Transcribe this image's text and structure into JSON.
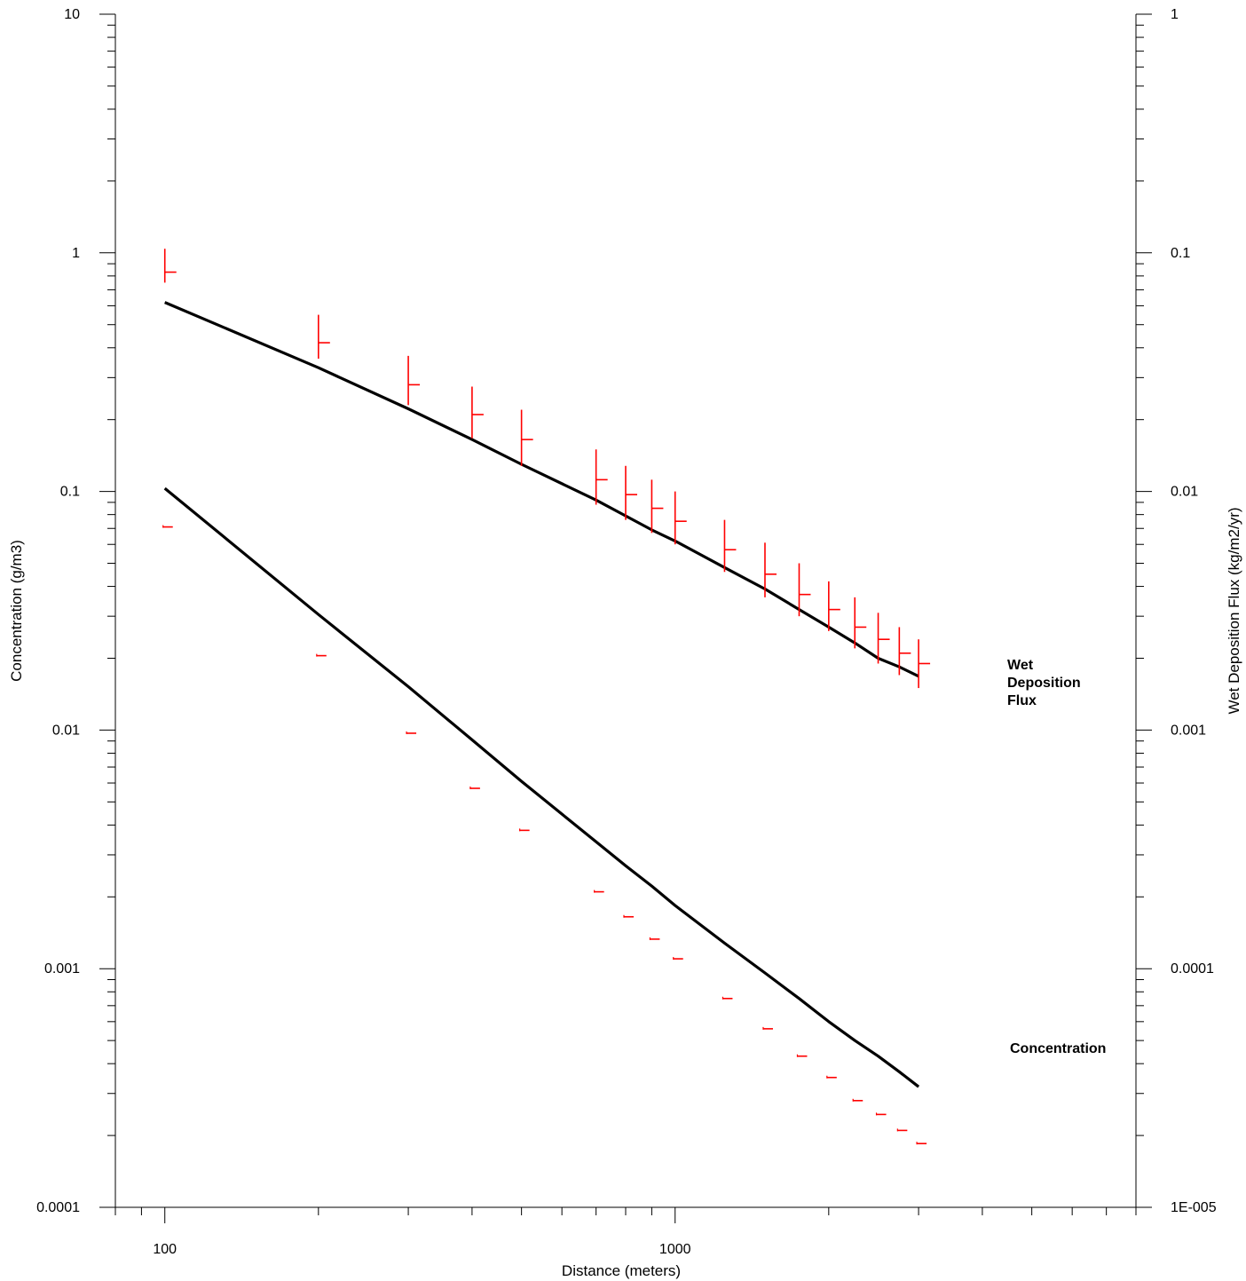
{
  "chart_data": {
    "type": "line",
    "title": "",
    "xlabel": "Distance (meters)",
    "ylabel": "Concentration (g/m3)",
    "y2label": "Wet Deposition Flux (kg/m2/yr)",
    "xscale": "log",
    "yscale": "log",
    "y2scale": "log",
    "xlim": [
      80,
      8000
    ],
    "ylim": [
      0.0001,
      10
    ],
    "y2lim": [
      1e-05,
      1
    ],
    "x_ticks": [
      100,
      1000
    ],
    "x_tick_labels": [
      "100",
      "1000"
    ],
    "y_ticks": [
      10,
      1,
      0.1,
      0.01,
      0.001,
      0.0001
    ],
    "y_tick_labels": [
      "10",
      "1",
      "0.1",
      "0.01",
      "0.001",
      "0.0001"
    ],
    "y2_ticks": [
      1,
      0.1,
      0.01,
      0.001,
      0.0001,
      1e-05
    ],
    "y2_tick_labels": [
      "1",
      "0.1",
      "0.01",
      "0.001",
      "0.0001",
      "1E-005"
    ],
    "grid": false,
    "legend": "none",
    "colors": {
      "lines": "#000000",
      "markers": "#ff0000"
    },
    "series": [
      {
        "name": "Concentration",
        "axis": "left",
        "style": "line",
        "x": [
          100,
          200,
          300,
          400,
          500,
          700,
          800,
          900,
          1000,
          1250,
          1500,
          1750,
          2000,
          2250,
          2500,
          2750,
          3000
        ],
        "y": [
          0.103,
          0.0305,
          0.0152,
          0.0091,
          0.0061,
          0.0034,
          0.0027,
          0.00222,
          0.00184,
          0.00128,
          0.00096,
          0.00075,
          0.0006,
          0.0005,
          0.00043,
          0.00037,
          0.00032
        ]
      },
      {
        "name": "Wet Deposition Flux",
        "axis": "right",
        "style": "line",
        "x": [
          100,
          200,
          300,
          400,
          500,
          700,
          800,
          900,
          1000,
          1250,
          1500,
          1750,
          2000,
          2250,
          2500,
          2750,
          3000
        ],
        "y": [
          0.062,
          0.033,
          0.0222,
          0.0165,
          0.013,
          0.0092,
          0.0079,
          0.0069,
          0.0062,
          0.0048,
          0.0039,
          0.0032,
          0.0027,
          0.00232,
          0.002,
          0.00184,
          0.00168
        ]
      },
      {
        "name": "Concentration observations",
        "axis": "left",
        "style": "marker",
        "x": [
          100,
          200,
          300,
          400,
          500,
          700,
          800,
          900,
          1000,
          1250,
          1500,
          1750,
          2000,
          2250,
          2500,
          2750,
          3000
        ],
        "y": [
          0.071,
          0.0205,
          0.0097,
          0.0057,
          0.0038,
          0.0021,
          0.00165,
          0.00133,
          0.0011,
          0.00075,
          0.00056,
          0.00043,
          0.00035,
          0.00028,
          0.000245,
          0.00021,
          0.000185
        ],
        "range": [
          [
            0.071,
            0.071
          ],
          [
            0.0205,
            0.0205
          ],
          [
            0.0097,
            0.0097
          ],
          [
            0.0057,
            0.0057
          ],
          [
            0.0038,
            0.0038
          ],
          [
            0.0021,
            0.0021
          ],
          [
            0.00165,
            0.00165
          ],
          [
            0.00133,
            0.00133
          ],
          [
            0.0011,
            0.0011
          ],
          [
            0.00075,
            0.00075
          ],
          [
            0.00056,
            0.00056
          ],
          [
            0.00043,
            0.00043
          ],
          [
            0.00035,
            0.00035
          ],
          [
            0.00028,
            0.00028
          ],
          [
            0.000245,
            0.000245
          ],
          [
            0.00021,
            0.00021
          ],
          [
            0.000185,
            0.000185
          ]
        ]
      },
      {
        "name": "Wet Deposition Flux observations",
        "axis": "right",
        "style": "marker",
        "x": [
          100,
          200,
          300,
          400,
          500,
          700,
          800,
          900,
          1000,
          1250,
          1500,
          1750,
          2000,
          2250,
          2500,
          2750,
          3000
        ],
        "y": [
          0.083,
          0.042,
          0.028,
          0.021,
          0.0165,
          0.0112,
          0.0097,
          0.0085,
          0.0075,
          0.0057,
          0.0045,
          0.0037,
          0.0032,
          0.0027,
          0.0024,
          0.0021,
          0.0019
        ],
        "range": [
          [
            0.075,
            0.104
          ],
          [
            0.036,
            0.055
          ],
          [
            0.023,
            0.037
          ],
          [
            0.0167,
            0.0275
          ],
          [
            0.0128,
            0.022
          ],
          [
            0.0088,
            0.015
          ],
          [
            0.0076,
            0.0128
          ],
          [
            0.0067,
            0.0112
          ],
          [
            0.006,
            0.01
          ],
          [
            0.0046,
            0.0076
          ],
          [
            0.0036,
            0.0061
          ],
          [
            0.003,
            0.005
          ],
          [
            0.0026,
            0.0042
          ],
          [
            0.0022,
            0.0036
          ],
          [
            0.0019,
            0.0031
          ],
          [
            0.0017,
            0.0027
          ],
          [
            0.0015,
            0.0024
          ]
        ]
      }
    ],
    "annotations": [
      {
        "text": "Wet",
        "near_series": "Wet Deposition Flux"
      },
      {
        "text": "Deposition",
        "near_series": "Wet Deposition Flux"
      },
      {
        "text": "Flux",
        "near_series": "Wet Deposition Flux"
      },
      {
        "text": "Concentration",
        "near_series": "Concentration"
      }
    ]
  }
}
